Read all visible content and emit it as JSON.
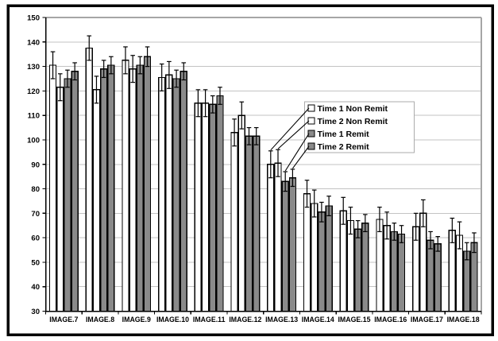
{
  "chart_data": {
    "type": "bar",
    "title": "",
    "xlabel": "",
    "ylabel": "",
    "categories": [
      "IMAGE.7",
      "IMAGE.8",
      "IMAGE.9",
      "IMAGE.10",
      "IMAGE.11",
      "IMAGE.12",
      "IMAGE.13",
      "IMAGE.14",
      "IMAGE.15",
      "IMAGE.16",
      "IMAGE.17",
      "IMAGE.18"
    ],
    "series": [
      {
        "name": "Time 1 Non Remit",
        "fill": "#ffffff",
        "values": [
          130.5,
          137.5,
          132.5,
          125.5,
          115,
          103,
          90,
          78,
          71,
          67.5,
          64.5,
          63
        ],
        "errors": [
          5.5,
          5,
          5.5,
          5.5,
          5.5,
          5.5,
          5.5,
          5.5,
          5.5,
          5,
          5.5,
          5
        ]
      },
      {
        "name": "Time 2 Non Remit",
        "fill": "#ffffff",
        "values": [
          121.5,
          120.5,
          129,
          126.5,
          115,
          110,
          90.5,
          74,
          67,
          65,
          70,
          61
        ],
        "errors": [
          5.5,
          5.5,
          5.5,
          5.5,
          5.5,
          5.5,
          5.5,
          5.5,
          5.5,
          5.5,
          5.5,
          5.5
        ]
      },
      {
        "name": "Time 1 Remit",
        "fill": "#8a8a8a",
        "values": [
          125,
          129,
          130.5,
          125,
          114.5,
          101.5,
          83,
          70.5,
          63.5,
          62.5,
          59,
          54.5
        ],
        "errors": [
          3.5,
          3.5,
          3.5,
          3.5,
          3.5,
          3.5,
          4,
          4,
          3.5,
          3.5,
          3.5,
          3.5
        ]
      },
      {
        "name": "Time 2 Remit",
        "fill": "#8a8a8a",
        "values": [
          128,
          130.5,
          134,
          128,
          118,
          101.5,
          84.5,
          73,
          66,
          61.5,
          57.5,
          58
        ],
        "errors": [
          3.5,
          3.5,
          4,
          3.5,
          3.5,
          3.5,
          3.5,
          4,
          3.5,
          3.5,
          3,
          4
        ]
      }
    ],
    "ylim": [
      30,
      150
    ],
    "yticks": [
      30,
      40,
      50,
      60,
      70,
      80,
      90,
      100,
      110,
      120,
      130,
      140,
      150
    ],
    "grid": true,
    "error_bars": true,
    "legend": {
      "items": [
        "Time 1 Non Remit",
        "Time 2 Non Remit",
        "Time 1 Remit",
        "Time 2 Remit"
      ],
      "position": "inside-right",
      "callout_category": "IMAGE.13"
    }
  },
  "colors": {
    "bar_white": "#ffffff",
    "bar_gray": "#8a8a8a",
    "bar_outline": "#000000",
    "gridline": "#c3c3c3",
    "plot_frame": "#a6a6a6",
    "axis": "#000000",
    "text": "#000000",
    "legend_border": "#ababab",
    "legend_background": "#ffffff",
    "outer_border": "#000000",
    "background": "#ffffff"
  }
}
